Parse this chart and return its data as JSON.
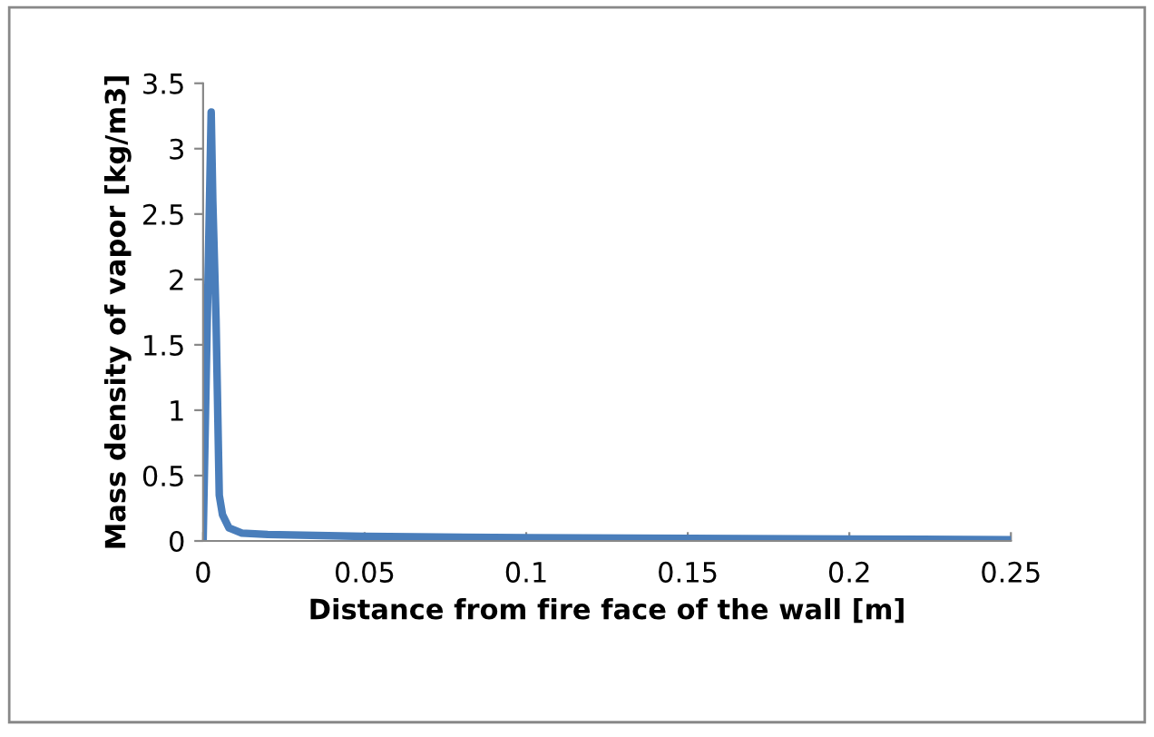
{
  "chart_data": {
    "type": "line",
    "xlabel": "Distance from fire face of the wall [m]",
    "ylabel": "Mass density of vapor [kg/m3]",
    "x": [
      0,
      0.0025,
      0.003,
      0.004,
      0.005,
      0.006,
      0.008,
      0.012,
      0.02,
      0.05,
      0.1,
      0.15,
      0.2,
      0.25
    ],
    "series": [
      {
        "color": "#4a7ebb",
        "values": [
          0,
          3.28,
          2.6,
          1.7,
          0.35,
          0.2,
          0.1,
          0.06,
          0.05,
          0.035,
          0.025,
          0.02,
          0.015,
          0.01
        ]
      }
    ],
    "xlim": [
      0,
      0.25
    ],
    "xticks": [
      0,
      0.05,
      0.1,
      0.15,
      0.2,
      0.25
    ],
    "ylim": [
      0,
      3.5
    ],
    "yticks": [
      0,
      0.5,
      1,
      1.5,
      2,
      2.5,
      3,
      3.5
    ],
    "grid": false,
    "legend": false,
    "marker": "none",
    "line_style": "solid"
  }
}
